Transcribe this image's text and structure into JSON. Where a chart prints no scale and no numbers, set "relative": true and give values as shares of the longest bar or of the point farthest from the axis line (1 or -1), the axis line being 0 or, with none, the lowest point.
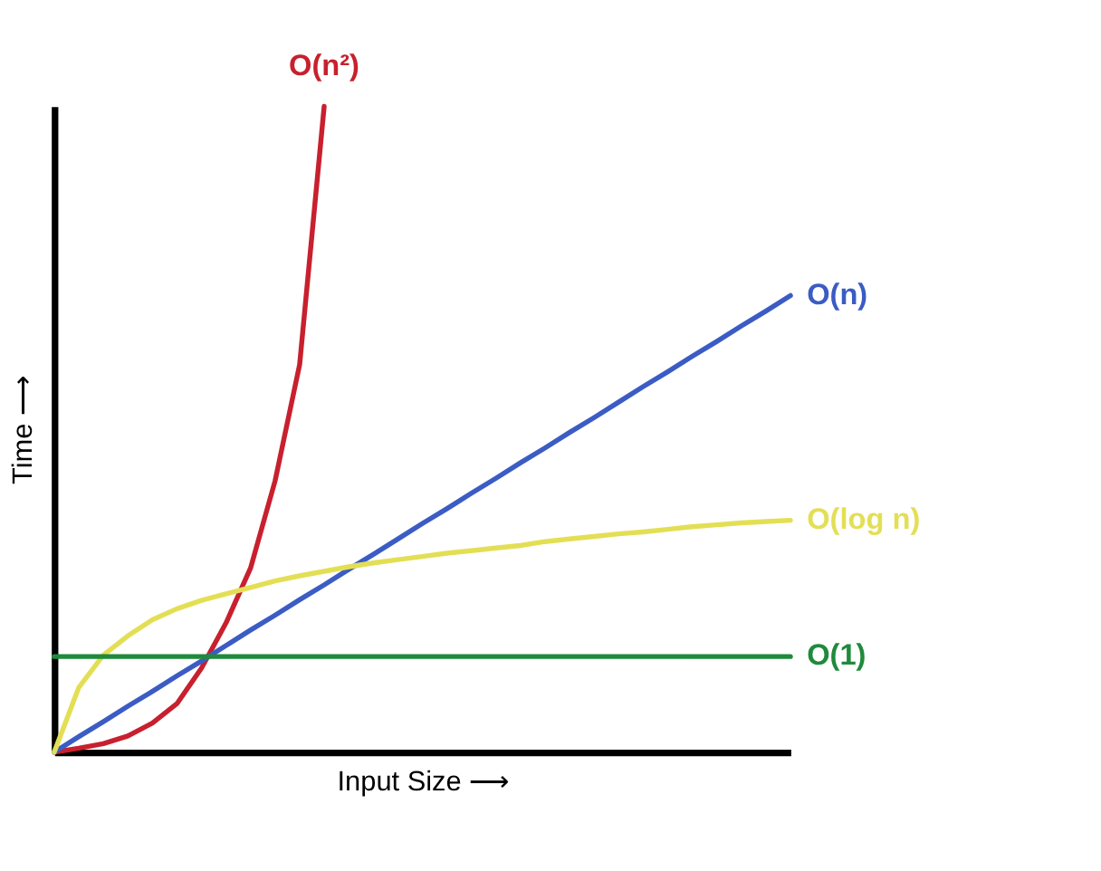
{
  "chart_data": {
    "type": "line",
    "relative": true,
    "xlabel": "Input Size ⟶",
    "ylabel": "Time ⟶",
    "tick_labels": false,
    "grid": false,
    "legend": false,
    "marker": "none",
    "line_style": "solid",
    "categories": [
      null,
      null,
      null,
      null,
      null,
      null,
      null,
      null,
      null,
      null,
      null,
      null,
      null,
      null,
      null,
      null,
      null,
      null,
      null,
      null,
      null,
      null,
      null,
      null,
      null,
      null,
      null,
      null,
      null,
      null,
      null
    ],
    "series": [
      {
        "name": "O(n²)",
        "color": "#c8202e",
        "values": [
          0,
          0.006,
          0.013,
          0.025,
          0.045,
          0.075,
          0.13,
          0.2,
          0.285,
          0.42,
          0.6,
          1,
          null,
          null,
          null,
          null,
          null,
          null,
          null,
          null,
          null,
          null,
          null,
          null,
          null,
          null,
          null,
          null,
          null,
          null,
          null
        ]
      },
      {
        "name": "O(n)",
        "color": "#3b5cc4",
        "values": [
          0,
          0.024,
          0.047,
          0.071,
          0.094,
          0.118,
          0.141,
          0.165,
          0.189,
          0.212,
          0.236,
          0.259,
          0.283,
          0.306,
          0.33,
          0.354,
          0.377,
          0.401,
          0.424,
          0.448,
          0.471,
          0.495,
          0.518,
          0.542,
          0.566,
          0.589,
          0.613,
          0.636,
          0.66,
          0.683,
          0.707
        ]
      },
      {
        "name": "O(log n)",
        "color": "#e3df55",
        "values": [
          0,
          0.1,
          0.15,
          0.18,
          0.205,
          0.222,
          0.235,
          0.245,
          0.255,
          0.265,
          0.273,
          0.28,
          0.287,
          0.293,
          0.298,
          0.303,
          0.308,
          0.312,
          0.316,
          0.32,
          0.326,
          0.33,
          0.334,
          0.338,
          0.341,
          0.345,
          0.349,
          0.352,
          0.355,
          0.357,
          0.359
        ]
      },
      {
        "name": "O(1)",
        "color": "#1f8a3c",
        "values": [
          0.148,
          0.148,
          0.148,
          0.148,
          0.148,
          0.148,
          0.148,
          0.148,
          0.148,
          0.148,
          0.148,
          0.148,
          0.148,
          0.148,
          0.148,
          0.148,
          0.148,
          0.148,
          0.148,
          0.148,
          0.148,
          0.148,
          0.148,
          0.148,
          0.148,
          0.148,
          0.148,
          0.148,
          0.148,
          0.148,
          0.148
        ]
      }
    ]
  }
}
